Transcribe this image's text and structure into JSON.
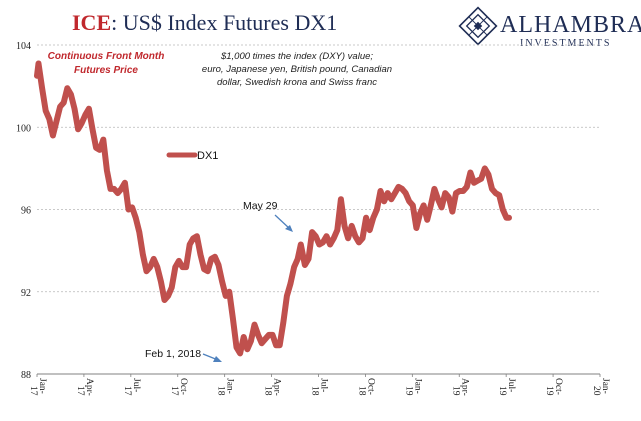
{
  "title": {
    "brand": "ICE",
    "rest": ": US$ Index Futures DX1"
  },
  "logo": {
    "name": "ALHAMBRA",
    "sub": "INVESTMENTS"
  },
  "annotations": {
    "series_note_line1": "Continuous  Front Month",
    "series_note_line2": "Futures Price",
    "desc_line1": "$1,000 times the index (DXY) value;",
    "desc_line2": "euro, Japanese yen, British pound, Canadian",
    "desc_line3": "dollar, Swedish krona and Swiss franc",
    "may29": "May 29",
    "feb1": "Feb 1, 2018"
  },
  "colors": {
    "series": "#c0504d",
    "grid": "#b8b8b8",
    "axis": "#808080",
    "title_red": "#c0282d",
    "navy": "#1f2d55",
    "arrow": "#4f81bd"
  },
  "chart_data": {
    "type": "line",
    "title": "ICE: US$ Index Futures DX1",
    "xlabel": "",
    "ylabel": "",
    "ylim": [
      88,
      104
    ],
    "yticks": [
      "104",
      "100",
      "96",
      "92",
      "88"
    ],
    "x_ticks": [
      [
        "Jan-",
        "17"
      ],
      [
        "Apr-",
        "17"
      ],
      [
        "Jul-",
        "17"
      ],
      [
        "Oct-",
        "17"
      ],
      [
        "Jan-",
        "18"
      ],
      [
        "Apr-",
        "18"
      ],
      [
        "Jul-",
        "18"
      ],
      [
        "Oct-",
        "18"
      ],
      [
        "Jan-",
        "19"
      ],
      [
        "Apr-",
        "19"
      ],
      [
        "Jul-",
        "19"
      ],
      [
        "Oct-",
        "19"
      ],
      [
        "Jan-",
        "20"
      ]
    ],
    "xlim": [
      "2017-01-01",
      "2020-01-01"
    ],
    "grid": "horizontal",
    "legend_position": "upper-left",
    "series": [
      {
        "name": "DX1",
        "points": [
          [
            "2017-01-01",
            102.5
          ],
          [
            "2017-01-04",
            103.1
          ],
          [
            "2017-01-11",
            101.9
          ],
          [
            "2017-01-18",
            100.8
          ],
          [
            "2017-01-25",
            100.4
          ],
          [
            "2017-02-01",
            99.6
          ],
          [
            "2017-02-08",
            100.3
          ],
          [
            "2017-02-15",
            101.0
          ],
          [
            "2017-02-22",
            101.2
          ],
          [
            "2017-03-01",
            101.9
          ],
          [
            "2017-03-08",
            101.6
          ],
          [
            "2017-03-15",
            100.9
          ],
          [
            "2017-03-22",
            99.9
          ],
          [
            "2017-03-29",
            100.2
          ],
          [
            "2017-04-05",
            100.6
          ],
          [
            "2017-04-12",
            100.9
          ],
          [
            "2017-04-19",
            99.9
          ],
          [
            "2017-04-26",
            99.0
          ],
          [
            "2017-05-03",
            98.9
          ],
          [
            "2017-05-10",
            99.4
          ],
          [
            "2017-05-17",
            97.9
          ],
          [
            "2017-05-24",
            97.0
          ],
          [
            "2017-05-31",
            97.0
          ],
          [
            "2017-06-07",
            96.8
          ],
          [
            "2017-06-14",
            97.0
          ],
          [
            "2017-06-21",
            97.3
          ],
          [
            "2017-06-28",
            96.0
          ],
          [
            "2017-07-05",
            96.1
          ],
          [
            "2017-07-12",
            95.6
          ],
          [
            "2017-07-19",
            94.9
          ],
          [
            "2017-07-26",
            93.8
          ],
          [
            "2017-08-02",
            93.0
          ],
          [
            "2017-08-09",
            93.2
          ],
          [
            "2017-08-16",
            93.6
          ],
          [
            "2017-08-23",
            93.2
          ],
          [
            "2017-08-30",
            92.5
          ],
          [
            "2017-09-06",
            91.6
          ],
          [
            "2017-09-13",
            91.8
          ],
          [
            "2017-09-20",
            92.2
          ],
          [
            "2017-09-27",
            93.2
          ],
          [
            "2017-10-04",
            93.5
          ],
          [
            "2017-10-11",
            93.2
          ],
          [
            "2017-10-18",
            93.2
          ],
          [
            "2017-10-25",
            94.3
          ],
          [
            "2017-11-01",
            94.6
          ],
          [
            "2017-11-08",
            94.7
          ],
          [
            "2017-11-15",
            93.8
          ],
          [
            "2017-11-22",
            93.1
          ],
          [
            "2017-11-29",
            93.0
          ],
          [
            "2017-12-06",
            93.6
          ],
          [
            "2017-12-13",
            93.7
          ],
          [
            "2017-12-20",
            93.3
          ],
          [
            "2017-12-27",
            92.5
          ],
          [
            "2018-01-03",
            91.8
          ],
          [
            "2018-01-10",
            92.0
          ],
          [
            "2018-01-17",
            90.7
          ],
          [
            "2018-01-24",
            89.3
          ],
          [
            "2018-01-31",
            89.0
          ],
          [
            "2018-02-07",
            89.8
          ],
          [
            "2018-02-14",
            89.2
          ],
          [
            "2018-02-21",
            89.6
          ],
          [
            "2018-02-28",
            90.4
          ],
          [
            "2018-03-07",
            89.9
          ],
          [
            "2018-03-14",
            89.5
          ],
          [
            "2018-03-21",
            89.7
          ],
          [
            "2018-03-28",
            89.9
          ],
          [
            "2018-04-04",
            89.9
          ],
          [
            "2018-04-11",
            89.4
          ],
          [
            "2018-04-18",
            89.4
          ],
          [
            "2018-04-25",
            90.5
          ],
          [
            "2018-05-02",
            91.8
          ],
          [
            "2018-05-09",
            92.4
          ],
          [
            "2018-05-16",
            93.2
          ],
          [
            "2018-05-23",
            93.6
          ],
          [
            "2018-05-29",
            94.3
          ],
          [
            "2018-06-06",
            93.3
          ],
          [
            "2018-06-13",
            93.6
          ],
          [
            "2018-06-20",
            94.9
          ],
          [
            "2018-06-27",
            94.7
          ],
          [
            "2018-07-04",
            94.3
          ],
          [
            "2018-07-11",
            94.4
          ],
          [
            "2018-07-18",
            94.7
          ],
          [
            "2018-07-25",
            94.3
          ],
          [
            "2018-08-01",
            94.6
          ],
          [
            "2018-08-08",
            95.0
          ],
          [
            "2018-08-15",
            96.5
          ],
          [
            "2018-08-22",
            95.2
          ],
          [
            "2018-08-29",
            94.6
          ],
          [
            "2018-09-05",
            95.2
          ],
          [
            "2018-09-12",
            94.7
          ],
          [
            "2018-09-19",
            94.4
          ],
          [
            "2018-09-26",
            94.6
          ],
          [
            "2018-10-03",
            95.6
          ],
          [
            "2018-10-10",
            95.0
          ],
          [
            "2018-10-17",
            95.6
          ],
          [
            "2018-10-24",
            96.0
          ],
          [
            "2018-10-31",
            96.9
          ],
          [
            "2018-11-07",
            96.4
          ],
          [
            "2018-11-14",
            96.8
          ],
          [
            "2018-11-21",
            96.5
          ],
          [
            "2018-11-28",
            96.8
          ],
          [
            "2018-12-05",
            97.1
          ],
          [
            "2018-12-12",
            97.0
          ],
          [
            "2018-12-19",
            96.8
          ],
          [
            "2018-12-26",
            96.4
          ],
          [
            "2019-01-02",
            96.2
          ],
          [
            "2019-01-09",
            95.1
          ],
          [
            "2019-01-16",
            95.8
          ],
          [
            "2019-01-23",
            96.2
          ],
          [
            "2019-01-30",
            95.5
          ],
          [
            "2019-02-06",
            96.2
          ],
          [
            "2019-02-13",
            97.0
          ],
          [
            "2019-02-20",
            96.5
          ],
          [
            "2019-02-27",
            96.1
          ],
          [
            "2019-03-06",
            96.8
          ],
          [
            "2019-03-13",
            96.6
          ],
          [
            "2019-03-20",
            95.9
          ],
          [
            "2019-03-27",
            96.8
          ],
          [
            "2019-04-03",
            96.9
          ],
          [
            "2019-04-10",
            96.9
          ],
          [
            "2019-04-17",
            97.1
          ],
          [
            "2019-04-24",
            97.8
          ],
          [
            "2019-05-01",
            97.3
          ],
          [
            "2019-05-08",
            97.4
          ],
          [
            "2019-05-15",
            97.5
          ],
          [
            "2019-05-22",
            98.0
          ],
          [
            "2019-05-29",
            97.7
          ],
          [
            "2019-06-05",
            97.0
          ],
          [
            "2019-06-12",
            96.8
          ],
          [
            "2019-06-19",
            96.7
          ],
          [
            "2019-06-26",
            96.0
          ],
          [
            "2019-07-03",
            95.6
          ],
          [
            "2019-07-08",
            95.6
          ]
        ]
      }
    ]
  }
}
